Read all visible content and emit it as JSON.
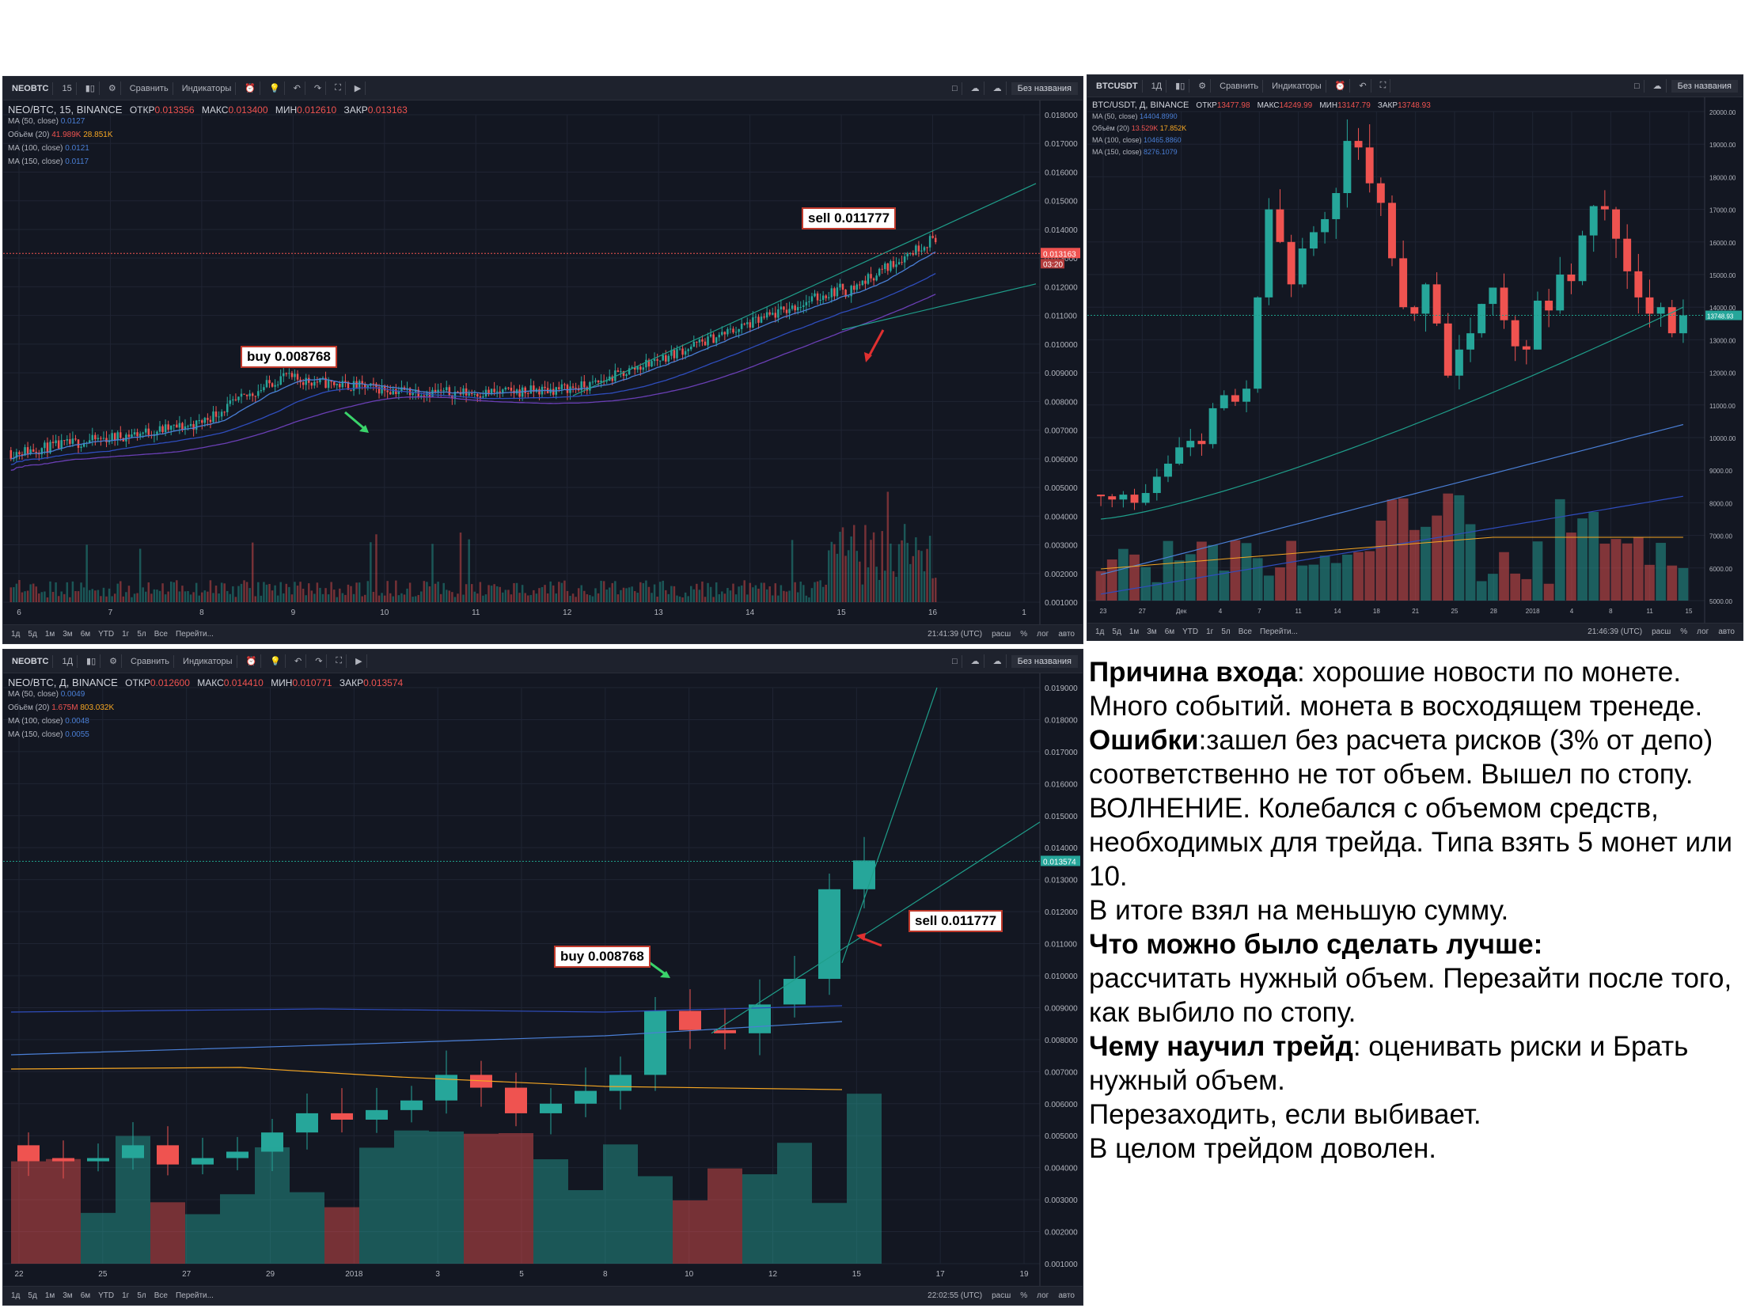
{
  "panels": {
    "neo15": {
      "toolbar": {
        "symbol": "NEOBTC",
        "interval": "15",
        "compare": "Сравнить",
        "indicators": "Индикаторы",
        "noname": "Без названия"
      },
      "legend": {
        "title": "NEO/BTC, 15, BINANCE",
        "open_label": "ОТКР",
        "open": "0.013356",
        "high_label": "МАКС",
        "high": "0.013400",
        "low_label": "МИН",
        "low": "0.012610",
        "close_label": "ЗАКР",
        "close": "0.013163",
        "ma50": "MA (50, close)",
        "ma50_val": "0.0127",
        "vol": "Объём (20)",
        "vol_val1": "41.989K",
        "vol_val2": "28.851K",
        "ma100": "MA (100, close)",
        "ma100_val": "0.0121",
        "ma150": "MA (150, close)",
        "ma150_val": "0.0117"
      },
      "y_ticks": [
        "0.018000",
        "0.017000",
        "0.016000",
        "0.015000",
        "0.014000",
        "0.013000",
        "0.012000",
        "0.011000",
        "0.010000",
        "0.009000",
        "0.008000",
        "0.007000",
        "0.006000",
        "0.005000",
        "0.004000",
        "0.003000",
        "0.002000",
        "0.001000"
      ],
      "price_tag": "0.013163",
      "time_tag": "03:20",
      "x_ticks": [
        "6",
        "7",
        "8",
        "9",
        "10",
        "11",
        "12",
        "13",
        "14",
        "15",
        "16",
        "1"
      ],
      "bottom": {
        "ranges": [
          "1д",
          "5д",
          "1м",
          "3м",
          "6м",
          "YTD",
          "1г",
          "5л",
          "Все",
          "Перейти..."
        ],
        "time": "21:41:39 (UTC)",
        "opts": [
          "расш",
          "%",
          "лог",
          "авто"
        ]
      },
      "annotations": {
        "buy": "buy 0.008768",
        "sell": "sell 0.011777"
      }
    },
    "btc": {
      "toolbar": {
        "symbol": "BTCUSDT",
        "interval": "1Д",
        "compare": "Сравнить",
        "indicators": "Индикаторы",
        "noname": "Без названия"
      },
      "legend": {
        "title": "BTC/USDT, Д, BINANCE",
        "open_label": "ОТКР",
        "open": "13477.98",
        "high_label": "МАКС",
        "high": "14249.99",
        "low_label": "МИН",
        "low": "13147.79",
        "close_label": "ЗАКР",
        "close": "13748.93",
        "ma50": "MA (50, close)",
        "ma50_val": "14404.8990",
        "vol": "Объём (20)",
        "vol_val1": "13.529K",
        "vol_val2": "17.852K",
        "ma100": "MA (100, close)",
        "ma100_val": "10465.8860",
        "ma150": "MA (150, close)",
        "ma150_val": "8276.1079"
      },
      "y_ticks": [
        "20000.00",
        "19000.00",
        "18000.00",
        "17000.00",
        "16000.00",
        "15000.00",
        "14000.00",
        "13000.00",
        "12000.00",
        "11000.00",
        "10000.00",
        "9000.00",
        "8000.00",
        "7000.00",
        "6000.00",
        "5000.00"
      ],
      "price_tag": "13748.93",
      "x_ticks": [
        "23",
        "27",
        "Дек",
        "4",
        "7",
        "11",
        "14",
        "18",
        "21",
        "25",
        "28",
        "2018",
        "4",
        "8",
        "11",
        "15"
      ],
      "bottom": {
        "ranges": [
          "1д",
          "5д",
          "1м",
          "3м",
          "6м",
          "YTD",
          "1г",
          "5л",
          "Все",
          "Перейти..."
        ],
        "time": "21:46:39 (UTC)",
        "opts": [
          "расш",
          "%",
          "лог",
          "авто"
        ]
      }
    },
    "neoD": {
      "toolbar": {
        "symbol": "NEOBTC",
        "interval": "1Д",
        "compare": "Сравнить",
        "indicators": "Индикаторы",
        "noname": "Без названия"
      },
      "legend": {
        "title": "NEO/BTC, Д, BINANCE",
        "open_label": "ОТКР",
        "open": "0.012600",
        "high_label": "МАКС",
        "high": "0.014410",
        "low_label": "МИН",
        "low": "0.010771",
        "close_label": "ЗАКР",
        "close": "0.013574",
        "ma50": "MA (50, close)",
        "ma50_val": "0.0049",
        "vol": "Объём (20)",
        "vol_val1": "1.675M",
        "vol_val2": "803.032K",
        "ma100": "MA (100, close)",
        "ma100_val": "0.0048",
        "ma150": "MA (150, close)",
        "ma150_val": "0.0055"
      },
      "y_ticks": [
        "0.019000",
        "0.018000",
        "0.017000",
        "0.016000",
        "0.015000",
        "0.014000",
        "0.013000",
        "0.012000",
        "0.011000",
        "0.010000",
        "0.009000",
        "0.008000",
        "0.007000",
        "0.006000",
        "0.005000",
        "0.004000",
        "0.003000",
        "0.002000",
        "0.001000"
      ],
      "price_tag": "0.013574",
      "x_ticks": [
        "22",
        "25",
        "27",
        "29",
        "2018",
        "3",
        "5",
        "8",
        "10",
        "12",
        "15",
        "17",
        "19"
      ],
      "bottom": {
        "ranges": [
          "1д",
          "5д",
          "1м",
          "3м",
          "6м",
          "YTD",
          "1г",
          "5л",
          "Все",
          "Перейти..."
        ],
        "time": "22:02:55 (UTC)",
        "opts": [
          "расш",
          "%",
          "лог",
          "авто"
        ]
      },
      "annotations": {
        "buy": "buy 0.008768",
        "sell": "sell 0.011777"
      }
    }
  },
  "notes": {
    "reason_label": "Причина входа",
    "reason_text": ": хорошие новости по монете. Много событий. монета в восходящем тренеде.",
    "errors_label": "Ошибки",
    "errors_text": ":зашел без расчета рисков (3% от депо) соответственно не тот объем. Вышел по стопу. ВОЛНЕНИЕ. Колебался с объемом средств, необходимых для трейда. Типа взять 5 монет или 10.",
    "errors_text2": "В итоге взял на меньшую сумму.",
    "better_label": "Что можно было сделать лучше",
    "better_colon": ":",
    "better_text": "рассчитать нужный объем. Перезайти после того, как выбило по стопу.",
    "learned_label": "Чему научил трейд",
    "learned_text": ": оценивать риски и Брать нужный объем.",
    "learned_text2": "Перезаходить, если выбивает.",
    "overall": "В целом трейдом доволен."
  },
  "colors": {
    "up": "#26a69a",
    "down": "#ef5350",
    "bg": "#131722",
    "ma50": "#4a7fd6",
    "ma100": "#2f4dbd",
    "ma150": "#6a3fb5",
    "vol_ma": "#f5a623",
    "annotation_border": "#c0392b"
  }
}
